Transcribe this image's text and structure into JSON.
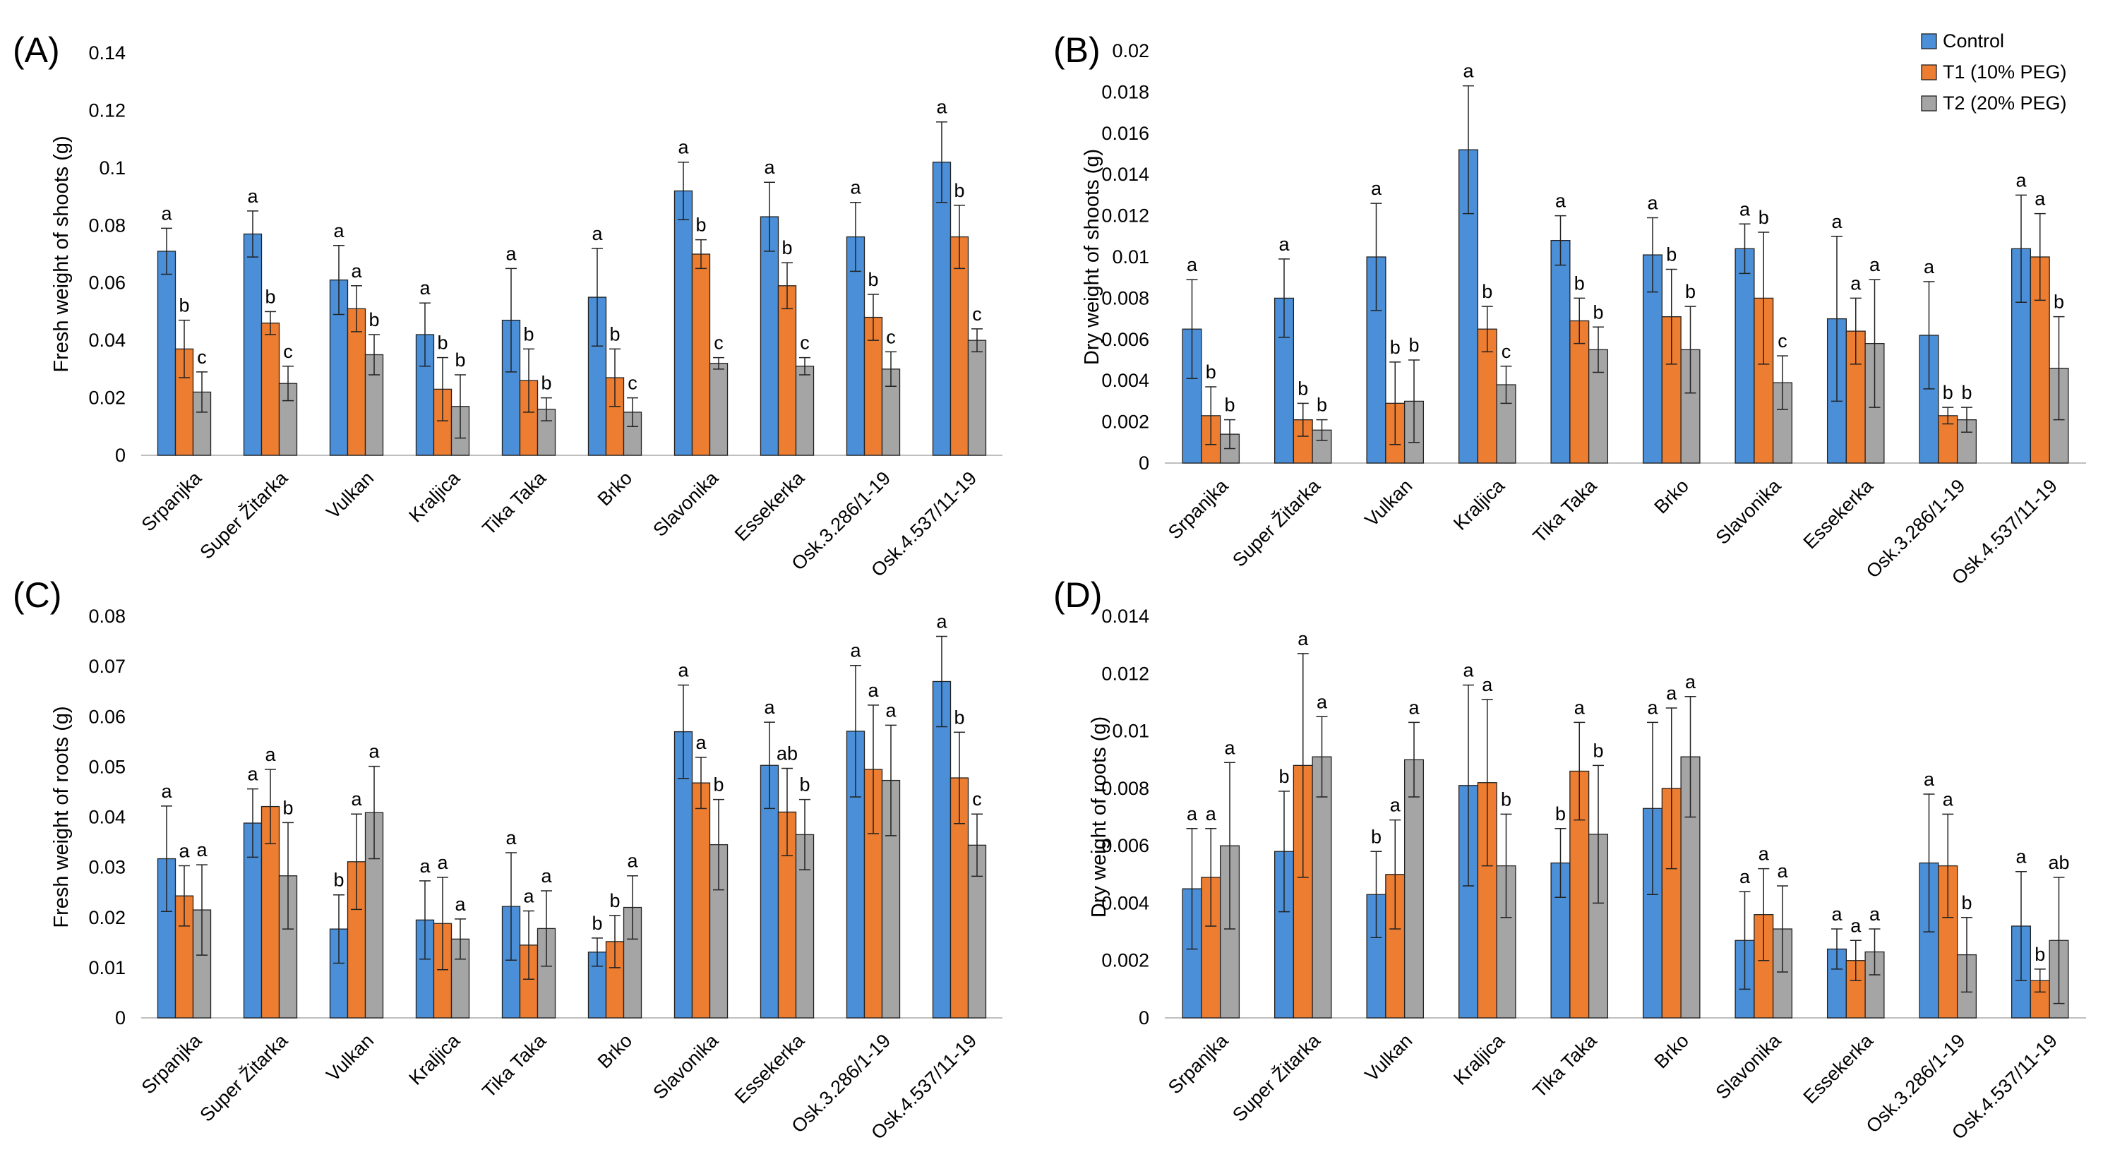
{
  "legend": [
    {
      "name": "Control",
      "color": "#4a8fd8"
    },
    {
      "name": "T1 (10% PEG)",
      "color": "#ed7d31"
    },
    {
      "name": "T2 (20% PEG)",
      "color": "#a5a5a5"
    }
  ],
  "chart_data": [
    {
      "panel": "(A)",
      "type": "bar",
      "ylabel": "Fresh weight of shoots (g)",
      "ylim": [
        0,
        0.14
      ],
      "yticks": [
        "0",
        "0.02",
        "0.04",
        "0.06",
        "0.08",
        "0.1",
        "0.12",
        "0.14"
      ],
      "categories": [
        "Srpanjka",
        "Super Žitarka",
        "Vulkan",
        "Kraljica",
        "Tika Taka",
        "Brko",
        "Slavonika",
        "Essekerka",
        "Osk.3.286/1-19",
        "Osk.4.537/11-19"
      ],
      "series": [
        {
          "name": "Control",
          "values": [
            0.071,
            0.077,
            0.061,
            0.042,
            0.047,
            0.055,
            0.092,
            0.083,
            0.076,
            0.102
          ],
          "errors": [
            0.008,
            0.008,
            0.012,
            0.011,
            0.018,
            0.017,
            0.01,
            0.012,
            0.012,
            0.014
          ],
          "letters": [
            "a",
            "a",
            "a",
            "a",
            "a",
            "a",
            "a",
            "a",
            "a",
            "a"
          ]
        },
        {
          "name": "T1 (10% PEG)",
          "values": [
            0.037,
            0.046,
            0.051,
            0.023,
            0.026,
            0.027,
            0.07,
            0.059,
            0.048,
            0.076
          ],
          "errors": [
            0.01,
            0.004,
            0.008,
            0.011,
            0.011,
            0.01,
            0.005,
            0.008,
            0.008,
            0.011
          ],
          "letters": [
            "b",
            "b",
            "a",
            "b",
            "b",
            "b",
            "b",
            "b",
            "b",
            "b"
          ]
        },
        {
          "name": "T2 (20% PEG)",
          "values": [
            0.022,
            0.025,
            0.035,
            0.017,
            0.016,
            0.015,
            0.032,
            0.031,
            0.03,
            0.04
          ],
          "errors": [
            0.007,
            0.006,
            0.007,
            0.011,
            0.004,
            0.005,
            0.002,
            0.003,
            0.006,
            0.004
          ],
          "letters": [
            "c",
            "c",
            "b",
            "b",
            "b",
            "c",
            "c",
            "c",
            "c",
            "c"
          ]
        }
      ]
    },
    {
      "panel": "(B)",
      "type": "bar",
      "ylabel": "Dry weight of shoots (g)",
      "ylim": [
        0,
        0.02
      ],
      "yticks": [
        "0",
        "0.002",
        "0.004",
        "0.006",
        "0.008",
        "0.01",
        "0.012",
        "0.014",
        "0.016",
        "0.018",
        "0.02"
      ],
      "categories": [
        "Srpanjka",
        "Super Žitarka",
        "Vulkan",
        "Kraljica",
        "Tika Taka",
        "Brko",
        "Slavonika",
        "Essekerka",
        "Osk.3.286/1-19",
        "Osk.4.537/11-19"
      ],
      "series": [
        {
          "name": "Control",
          "values": [
            0.0065,
            0.008,
            0.01,
            0.0152,
            0.0108,
            0.0101,
            0.0104,
            0.007,
            0.0062,
            0.0104
          ],
          "errors": [
            0.0024,
            0.0019,
            0.0026,
            0.0031,
            0.0012,
            0.0018,
            0.0012,
            0.004,
            0.0026,
            0.0026
          ],
          "letters": [
            "a",
            "a",
            "a",
            "a",
            "a",
            "a",
            "a",
            "a",
            "a",
            "a"
          ]
        },
        {
          "name": "T1 (10% PEG)",
          "values": [
            0.0023,
            0.0021,
            0.0029,
            0.0065,
            0.0069,
            0.0071,
            0.008,
            0.0064,
            0.0023,
            0.01
          ],
          "errors": [
            0.0014,
            0.0008,
            0.002,
            0.0011,
            0.0011,
            0.0023,
            0.0032,
            0.0016,
            0.0004,
            0.0021
          ],
          "letters": [
            "b",
            "b",
            "b",
            "b",
            "b",
            "b",
            "b",
            "a",
            "b",
            "a"
          ]
        },
        {
          "name": "T2 (20% PEG)",
          "values": [
            0.0014,
            0.0016,
            0.003,
            0.0038,
            0.0055,
            0.0055,
            0.0039,
            0.0058,
            0.0021,
            0.0046
          ],
          "errors": [
            0.0007,
            0.0005,
            0.002,
            0.0009,
            0.0011,
            0.0021,
            0.0013,
            0.0031,
            0.0006,
            0.0025
          ],
          "letters": [
            "b",
            "b",
            "b",
            "c",
            "b",
            "b",
            "c",
            "a",
            "b",
            "b"
          ]
        }
      ]
    },
    {
      "panel": "(C)",
      "type": "bar",
      "ylabel": "Fresh weight of roots (g)",
      "ylim": [
        0,
        0.08
      ],
      "yticks": [
        "0",
        "0.01",
        "0.02",
        "0.03",
        "0.04",
        "0.05",
        "0.06",
        "0.07",
        "0.08"
      ],
      "categories": [
        "Srpanjka",
        "Super Žitarka",
        "Vulkan",
        "Kraljica",
        "Tika Taka",
        "Brko",
        "Slavonika",
        "Essekerka",
        "Osk.3.286/1-19",
        "Osk.4.537/11-19"
      ],
      "series": [
        {
          "name": "Control",
          "values": [
            0.0317,
            0.0388,
            0.0177,
            0.0195,
            0.0222,
            0.0131,
            0.057,
            0.0503,
            0.0571,
            0.067
          ],
          "errors": [
            0.0105,
            0.0068,
            0.0068,
            0.0078,
            0.0107,
            0.0028,
            0.0093,
            0.0086,
            0.0131,
            0.009
          ],
          "letters": [
            "a",
            "a",
            "b",
            "a",
            "a",
            "b",
            "a",
            "a",
            "a",
            "a"
          ]
        },
        {
          "name": "T1 (10% PEG)",
          "values": [
            0.0243,
            0.0421,
            0.0311,
            0.0188,
            0.0145,
            0.0152,
            0.0468,
            0.041,
            0.0495,
            0.0478
          ],
          "errors": [
            0.006,
            0.0074,
            0.0095,
            0.0092,
            0.0068,
            0.0052,
            0.0051,
            0.0087,
            0.0128,
            0.0091
          ],
          "letters": [
            "a",
            "a",
            "a",
            "a",
            "a",
            "b",
            "a",
            "ab",
            "a",
            "b"
          ]
        },
        {
          "name": "T2 (20% PEG)",
          "values": [
            0.0215,
            0.0283,
            0.0409,
            0.0157,
            0.0178,
            0.022,
            0.0345,
            0.0365,
            0.0473,
            0.0344
          ],
          "errors": [
            0.009,
            0.0106,
            0.0092,
            0.004,
            0.0075,
            0.0063,
            0.009,
            0.007,
            0.011,
            0.0062
          ],
          "letters": [
            "a",
            "b",
            "a",
            "a",
            "a",
            "a",
            "b",
            "b",
            "a",
            "c"
          ]
        }
      ]
    },
    {
      "panel": "(D)",
      "type": "bar",
      "ylabel": "Dry weight of roots (g)",
      "ylim": [
        0,
        0.014
      ],
      "yticks": [
        "0",
        "0.002",
        "0.004",
        "0.006",
        "0.008",
        "0.01",
        "0.012",
        "0.014"
      ],
      "categories": [
        "Srpanjka",
        "Super Žitarka",
        "Vulkan",
        "Kraljica",
        "Tika Taka",
        "Brko",
        "Slavonika",
        "Essekerka",
        "Osk.3.286/1-19",
        "Osk.4.537/11-19"
      ],
      "series": [
        {
          "name": "Control",
          "values": [
            0.0045,
            0.0058,
            0.0043,
            0.0081,
            0.0054,
            0.0073,
            0.0027,
            0.0024,
            0.0054,
            0.0032
          ],
          "errors": [
            0.0021,
            0.0021,
            0.0015,
            0.0035,
            0.0012,
            0.003,
            0.0017,
            0.0007,
            0.0024,
            0.0019
          ],
          "letters": [
            "a",
            "b",
            "b",
            "a",
            "b",
            "a",
            "a",
            "a",
            "a",
            "a"
          ]
        },
        {
          "name": "T1 (10% PEG)",
          "values": [
            0.0049,
            0.0088,
            0.005,
            0.0082,
            0.0086,
            0.008,
            0.0036,
            0.002,
            0.0053,
            0.0013
          ],
          "errors": [
            0.0017,
            0.0039,
            0.0019,
            0.0029,
            0.0017,
            0.0028,
            0.0016,
            0.0007,
            0.0018,
            0.0004
          ],
          "letters": [
            "a",
            "a",
            "a",
            "a",
            "a",
            "a",
            "a",
            "a",
            "a",
            "b"
          ]
        },
        {
          "name": "T2 (20% PEG)",
          "values": [
            0.006,
            0.0091,
            0.009,
            0.0053,
            0.0064,
            0.0091,
            0.0031,
            0.0023,
            0.0022,
            0.0027
          ],
          "errors": [
            0.0029,
            0.0014,
            0.0013,
            0.0018,
            0.0024,
            0.0021,
            0.0015,
            0.0008,
            0.0013,
            0.0022
          ],
          "letters": [
            "a",
            "a",
            "a",
            "b",
            "b",
            "a",
            "a",
            "a",
            "b",
            "ab"
          ]
        }
      ]
    }
  ]
}
